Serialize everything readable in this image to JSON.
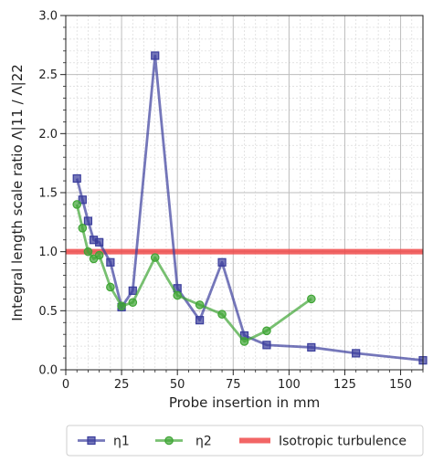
{
  "chart_data": {
    "type": "line",
    "xlabel": "Probe insertion in mm",
    "ylabel": "Integral length scale ratio Λ|11 / Λ|22",
    "xlim": [
      0,
      160
    ],
    "ylim": [
      0,
      3.0
    ],
    "x_ticks": [
      0,
      25,
      50,
      75,
      100,
      125,
      150
    ],
    "y_ticks": [
      0.0,
      0.5,
      1.0,
      1.5,
      2.0,
      2.5,
      3.0
    ],
    "y_tick_labels": [
      "0.0",
      "0.5",
      "1.0",
      "1.5",
      "2.0",
      "2.5",
      "3.0"
    ],
    "grid": true,
    "minor_grid": true,
    "legend_position": "below plot",
    "series": [
      {
        "name": "η1",
        "marker": "square",
        "color": "#3a3d9c",
        "x": [
          5,
          7.5,
          10,
          12.5,
          15,
          20,
          25,
          30,
          40,
          50,
          60,
          70,
          80,
          90,
          110,
          130,
          160
        ],
        "y": [
          1.62,
          1.44,
          1.26,
          1.1,
          1.08,
          0.91,
          0.53,
          0.67,
          2.66,
          0.69,
          0.42,
          0.91,
          0.29,
          0.21,
          0.19,
          0.14,
          0.08
        ]
      },
      {
        "name": "η2",
        "marker": "circle",
        "color": "#3fa535",
        "x": [
          5,
          7.5,
          10,
          12.5,
          15,
          20,
          25,
          30,
          40,
          50,
          60,
          70,
          80,
          90,
          110
        ],
        "y": [
          1.4,
          1.2,
          1.0,
          0.94,
          0.97,
          0.7,
          0.54,
          0.57,
          0.95,
          0.63,
          0.55,
          0.47,
          0.24,
          0.33,
          0.6
        ]
      }
    ],
    "reference_line": {
      "name": "Isotropic turbulence",
      "y": 1.0,
      "color": "#f04a4a"
    }
  }
}
